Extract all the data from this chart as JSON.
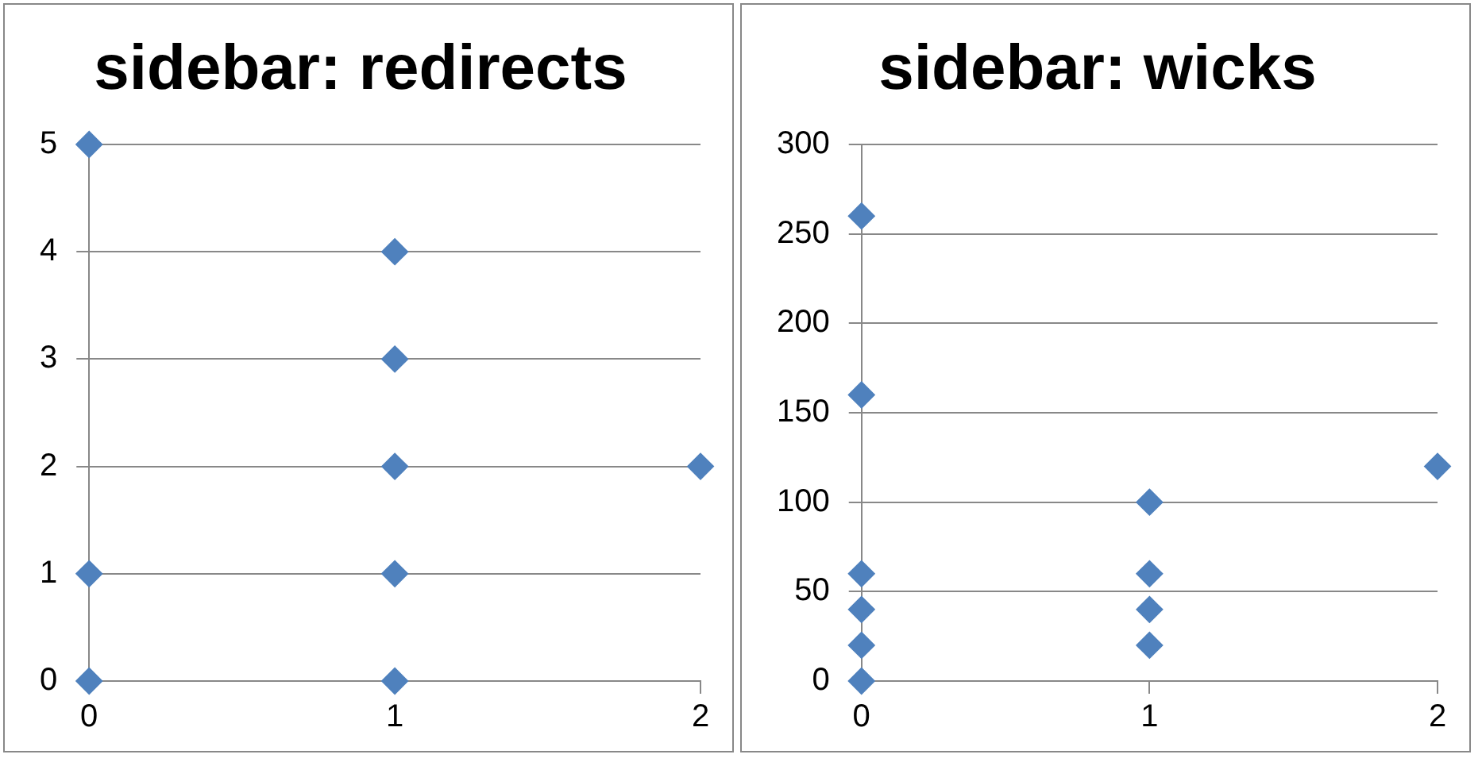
{
  "chart_data": [
    {
      "type": "scatter",
      "title": "sidebar: redirects",
      "marker": "diamond",
      "grid": "y",
      "legend": false,
      "xlim": [
        0,
        2
      ],
      "xticks": [
        0,
        1,
        2
      ],
      "ylim": [
        0,
        5
      ],
      "yticks": [
        0,
        1,
        2,
        3,
        4,
        5
      ],
      "series": [
        {
          "color": "#4f81bd",
          "x": [
            0,
            0,
            0,
            1,
            1,
            1,
            1,
            1,
            2
          ],
          "values": [
            5,
            1,
            0,
            4,
            3,
            2,
            1,
            0,
            2
          ]
        }
      ]
    },
    {
      "type": "scatter",
      "title": "sidebar: wicks",
      "marker": "diamond",
      "grid": "y",
      "legend": false,
      "xlim": [
        0,
        2
      ],
      "xticks": [
        0,
        1,
        2
      ],
      "ylim": [
        0,
        300
      ],
      "yticks": [
        0,
        50,
        100,
        150,
        200,
        250,
        300
      ],
      "series": [
        {
          "color": "#4f81bd",
          "x": [
            0,
            0,
            0,
            0,
            0,
            0,
            1,
            1,
            1,
            1,
            2
          ],
          "values": [
            260,
            160,
            60,
            40,
            20,
            0,
            100,
            60,
            40,
            20,
            120
          ]
        }
      ]
    }
  ]
}
